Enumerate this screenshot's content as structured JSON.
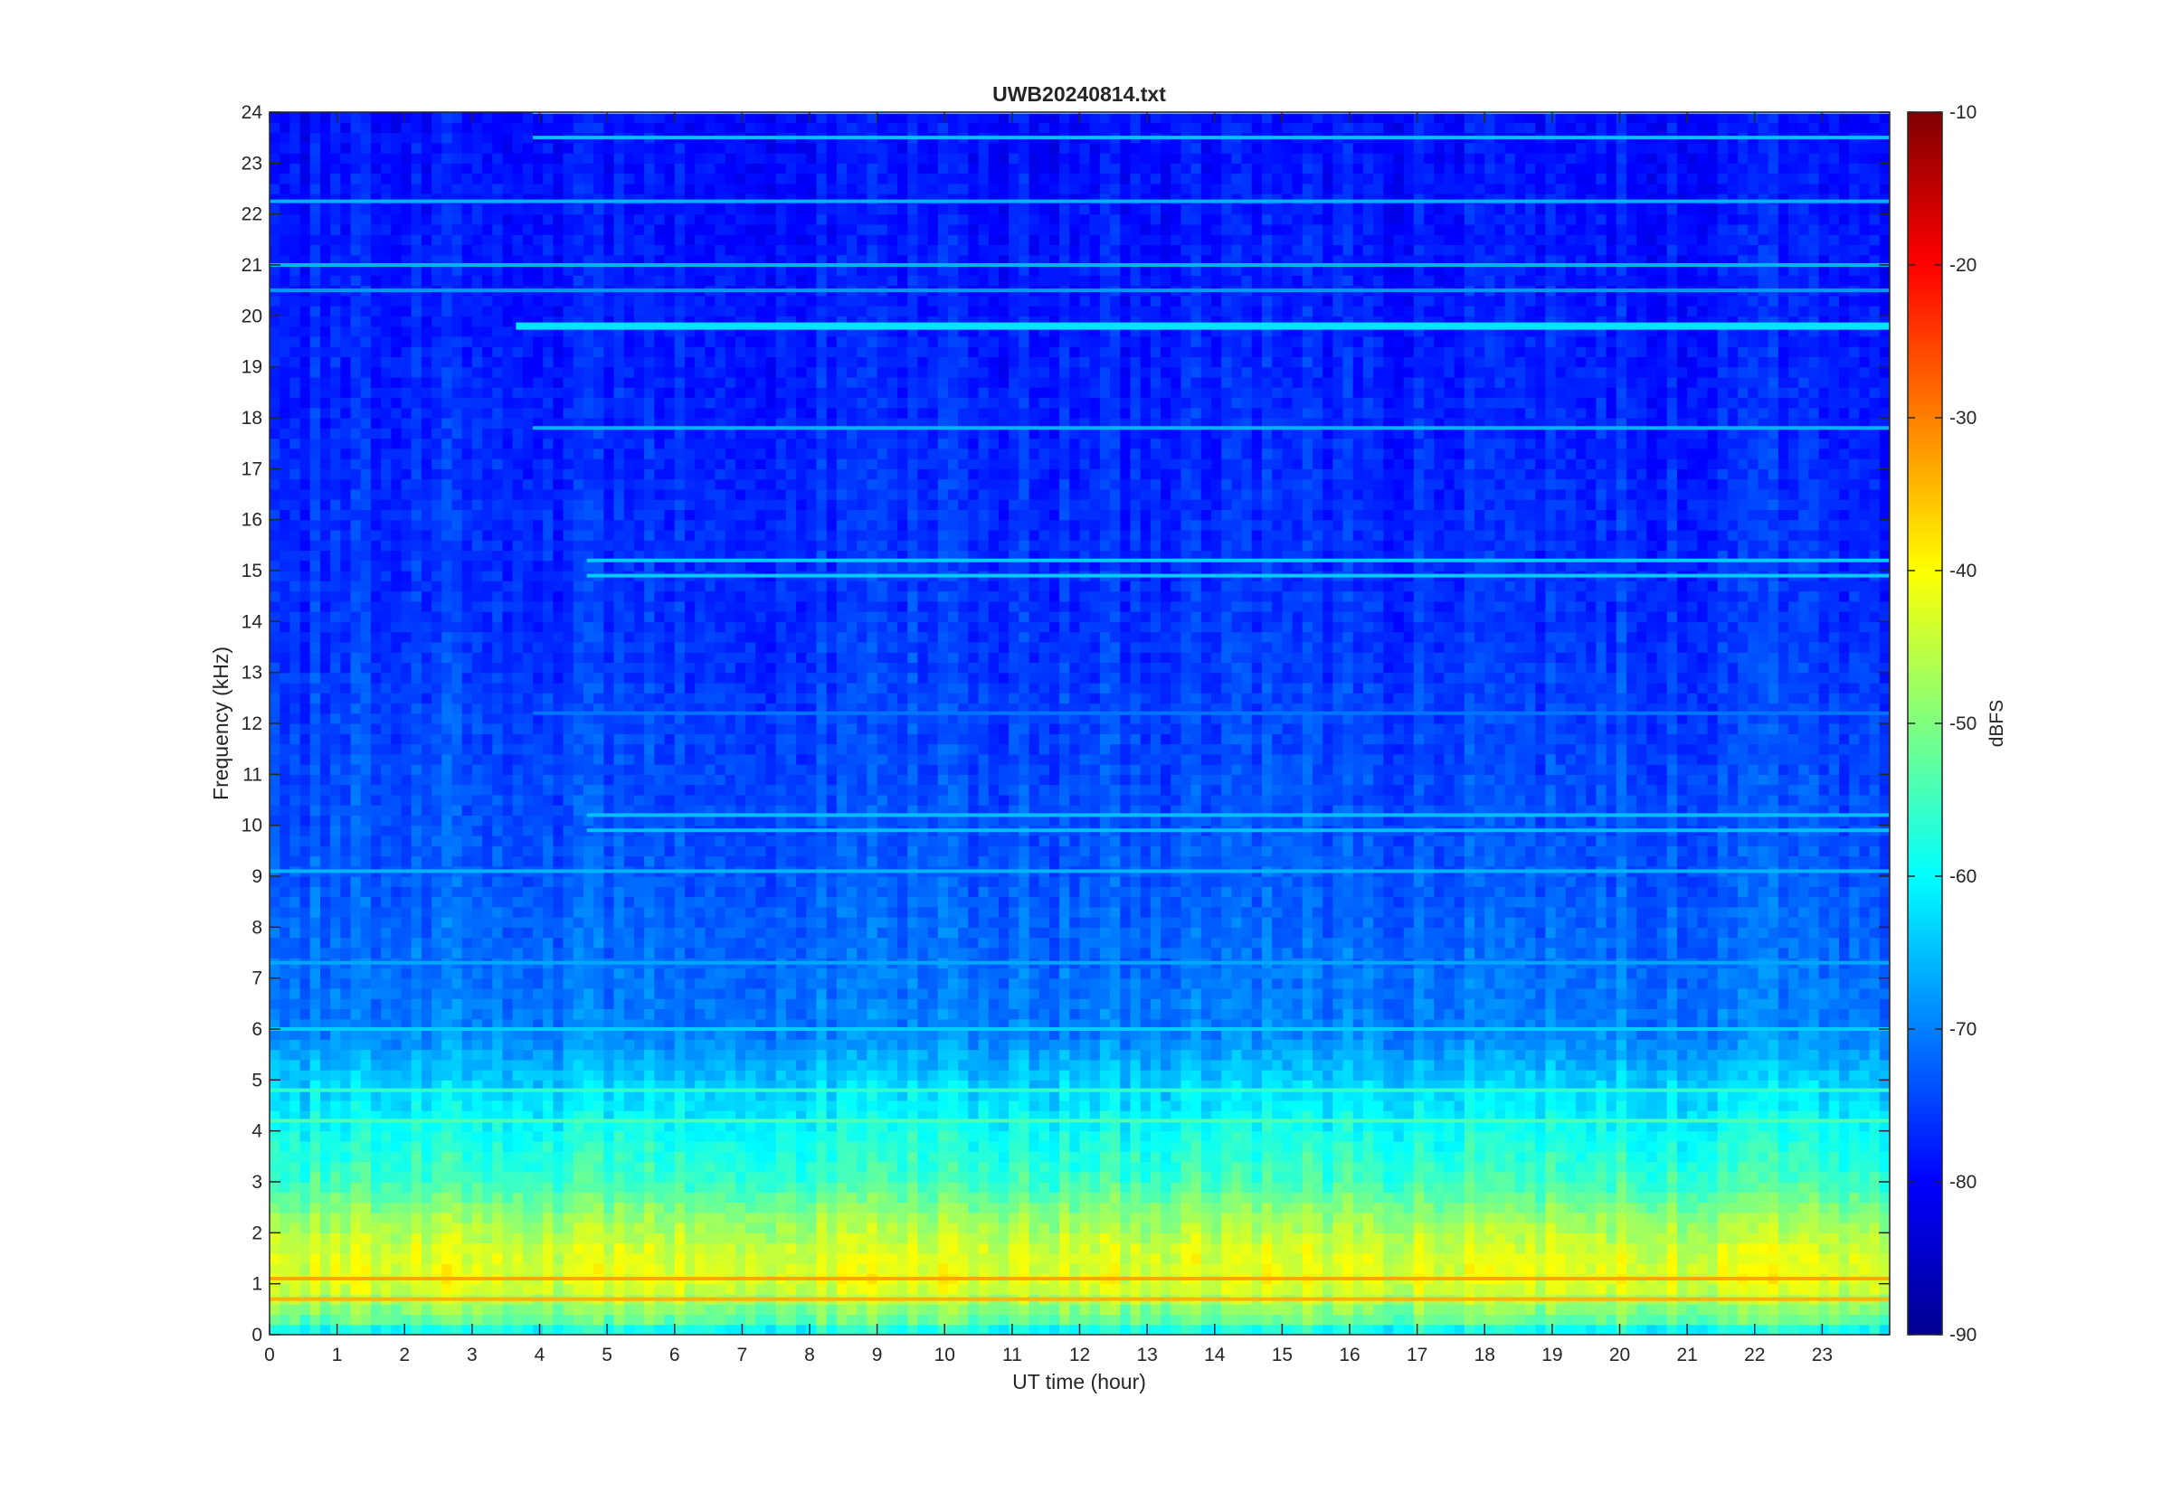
{
  "chart_data": {
    "type": "heatmap",
    "title": "UWB20240814.txt",
    "xlabel": "UT time (hour)",
    "ylabel": "Frequency (kHz)",
    "xlim": [
      0,
      24
    ],
    "ylim": [
      0,
      24
    ],
    "x_ticks": [
      "0",
      "1",
      "2",
      "3",
      "4",
      "5",
      "6",
      "7",
      "8",
      "9",
      "10",
      "11",
      "12",
      "13",
      "14",
      "15",
      "16",
      "17",
      "18",
      "19",
      "20",
      "21",
      "22",
      "23"
    ],
    "y_ticks": [
      "0",
      "1",
      "2",
      "3",
      "4",
      "5",
      "6",
      "7",
      "8",
      "9",
      "10",
      "11",
      "12",
      "13",
      "14",
      "15",
      "16",
      "17",
      "18",
      "19",
      "20",
      "21",
      "22",
      "23",
      "24"
    ],
    "colorbar": {
      "label": "dBFS",
      "range": [
        -90,
        -10
      ],
      "ticks": [
        "-10",
        "-20",
        "-30",
        "-40",
        "-50",
        "-60",
        "-70",
        "-80",
        "-90"
      ],
      "colormap": "jet"
    },
    "grid": false,
    "spectrum_profile_db": [
      {
        "freq_khz": 0.0,
        "db": -62
      },
      {
        "freq_khz": 0.3,
        "db": -52
      },
      {
        "freq_khz": 1.0,
        "db": -42
      },
      {
        "freq_khz": 1.6,
        "db": -43
      },
      {
        "freq_khz": 2.3,
        "db": -48
      },
      {
        "freq_khz": 3.0,
        "db": -55
      },
      {
        "freq_khz": 4.0,
        "db": -59
      },
      {
        "freq_khz": 5.0,
        "db": -64
      },
      {
        "freq_khz": 6.0,
        "db": -70
      },
      {
        "freq_khz": 9.0,
        "db": -73
      },
      {
        "freq_khz": 14.0,
        "db": -76
      },
      {
        "freq_khz": 24.0,
        "db": -79
      }
    ],
    "tones": [
      {
        "freq_khz": 19.8,
        "start_hour": 3.65,
        "end_hour": 24.0,
        "db": -62
      },
      {
        "freq_khz": 22.25,
        "start_hour": 0.0,
        "end_hour": 24.0,
        "db": -66
      },
      {
        "freq_khz": 17.8,
        "start_hour": 3.9,
        "end_hour": 24.0,
        "db": -66
      },
      {
        "freq_khz": 23.5,
        "start_hour": 3.9,
        "end_hour": 24.0,
        "db": -65
      },
      {
        "freq_khz": 24.0,
        "start_hour": 3.9,
        "end_hour": 24.0,
        "db": -64
      },
      {
        "freq_khz": 21.0,
        "start_hour": 0.0,
        "end_hour": 24.0,
        "db": -66
      },
      {
        "freq_khz": 20.5,
        "start_hour": 0.0,
        "end_hour": 24.0,
        "db": -68
      },
      {
        "freq_khz": 15.2,
        "start_hour": 4.7,
        "end_hour": 24.0,
        "db": -64
      },
      {
        "freq_khz": 14.9,
        "start_hour": 4.7,
        "end_hour": 24.0,
        "db": -64
      },
      {
        "freq_khz": 10.2,
        "start_hour": 4.7,
        "end_hour": 24.0,
        "db": -65
      },
      {
        "freq_khz": 9.9,
        "start_hour": 4.7,
        "end_hour": 24.0,
        "db": -65
      },
      {
        "freq_khz": 12.2,
        "start_hour": 3.9,
        "end_hour": 24.0,
        "db": -71
      },
      {
        "freq_khz": 9.1,
        "start_hour": 0.0,
        "end_hour": 24.0,
        "db": -66
      },
      {
        "freq_khz": 7.3,
        "start_hour": 0.0,
        "end_hour": 24.0,
        "db": -67
      },
      {
        "freq_khz": 6.0,
        "start_hour": 0.0,
        "end_hour": 24.0,
        "db": -64
      },
      {
        "freq_khz": 4.8,
        "start_hour": 0.0,
        "end_hour": 24.0,
        "db": -56
      },
      {
        "freq_khz": 4.2,
        "start_hour": 0.0,
        "end_hour": 24.0,
        "db": -54
      },
      {
        "freq_khz": 1.1,
        "start_hour": 0.0,
        "end_hour": 24.0,
        "db": -33
      },
      {
        "freq_khz": 0.7,
        "start_hour": 0.0,
        "end_hour": 24.0,
        "db": -34
      }
    ]
  }
}
